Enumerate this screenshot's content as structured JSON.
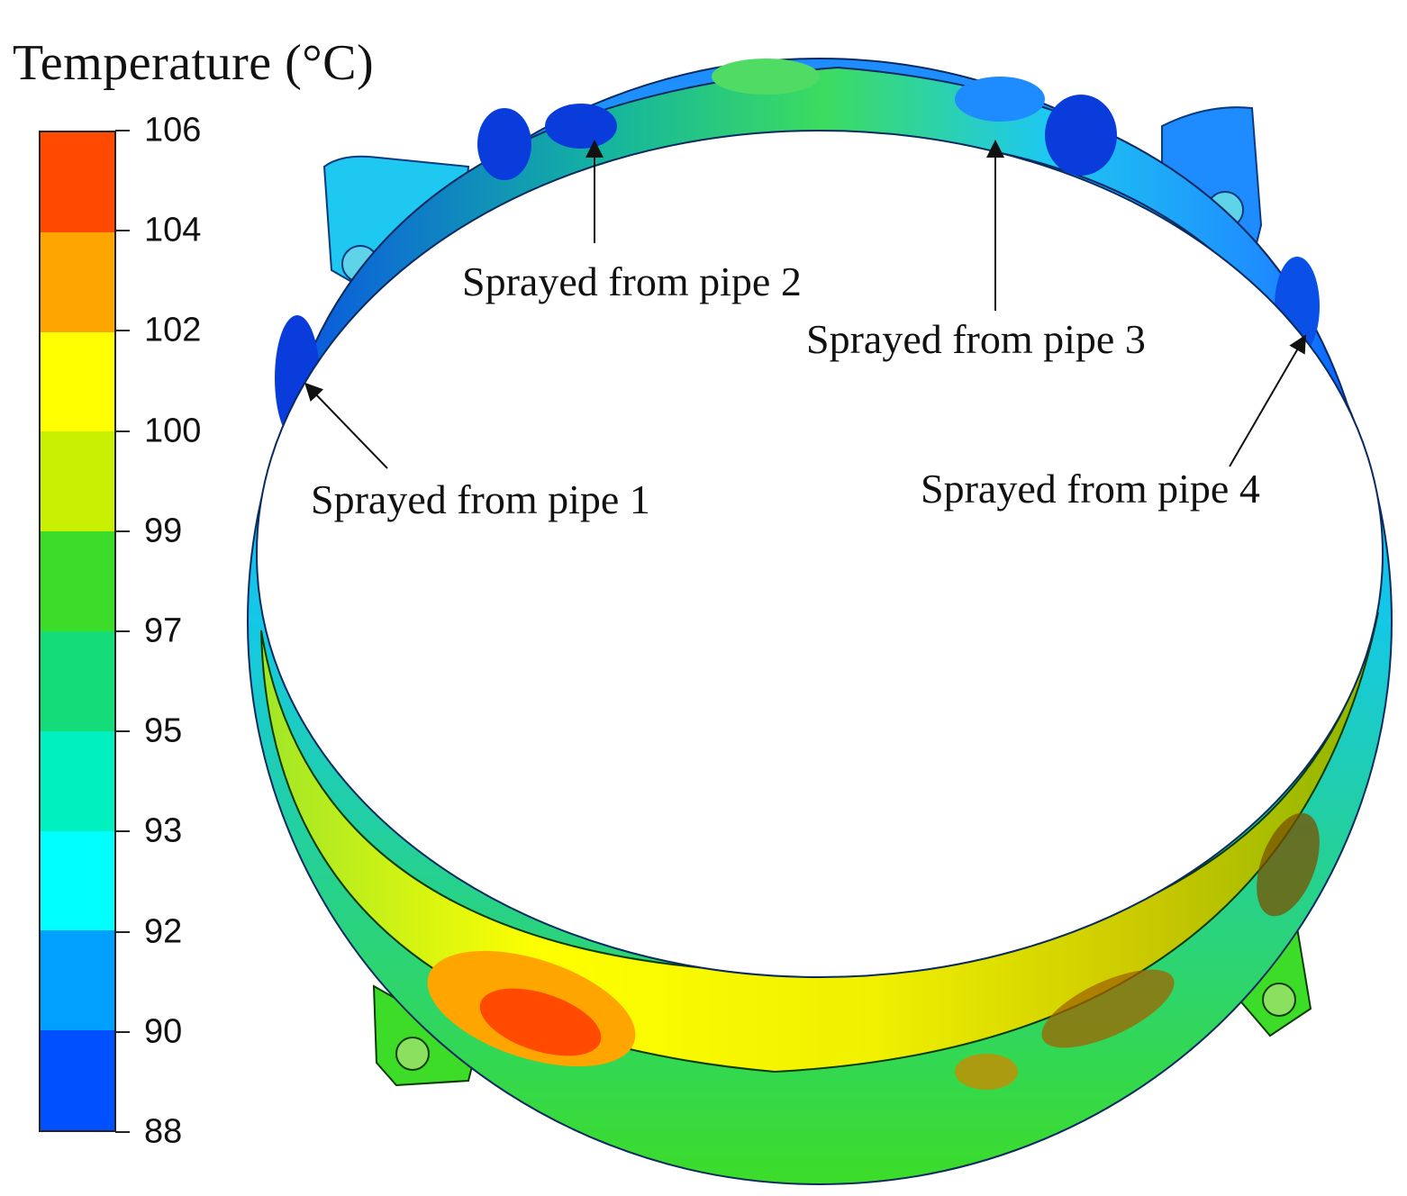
{
  "legend": {
    "title": "Temperature (°C)",
    "ticks": [
      "106",
      "104",
      "102",
      "100",
      "99",
      "97",
      "95",
      "93",
      "92",
      "90",
      "88"
    ],
    "band_colors": [
      "#ff4a00",
      "#ffa500",
      "#ffff00",
      "#c8f000",
      "#3cdc28",
      "#14dc78",
      "#00f0c0",
      "#00ffff",
      "#00a0ff",
      "#0050ff"
    ]
  },
  "annotations": {
    "pipe1": "Sprayed from pipe 1",
    "pipe2": "Sprayed from pipe 2",
    "pipe3": "Sprayed from pipe 3",
    "pipe4": "Sprayed from pipe 4"
  },
  "colors": {
    "hot": "#ff4a00",
    "warm": "#ffff00",
    "mid": "#14dc78",
    "cool": "#00ffff",
    "cold": "#0050ff"
  }
}
